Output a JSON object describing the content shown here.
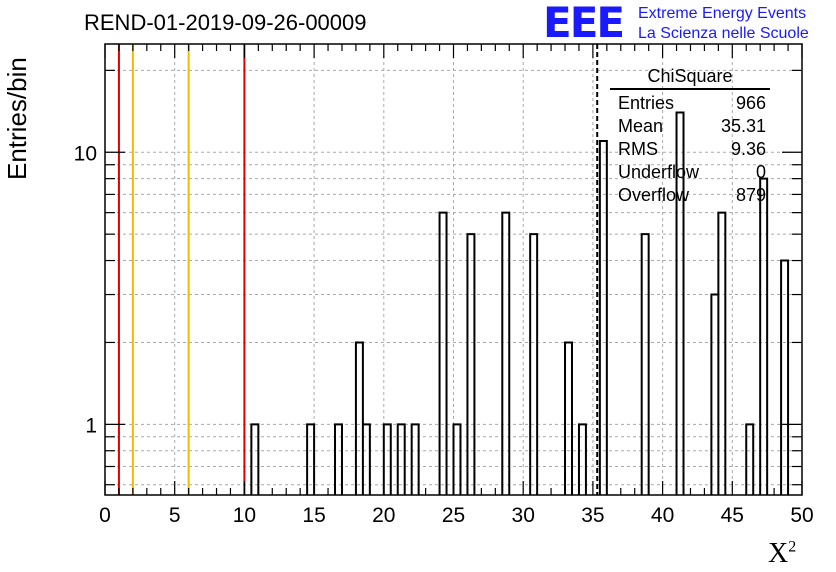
{
  "title": "REND-01-2019-09-26-00009",
  "logo": {
    "text": "EEE",
    "line1": "Extreme Energy Events",
    "line2": "La Scienza nelle Scuole",
    "color": "#1a1aff"
  },
  "stats": {
    "name": "ChiSquare",
    "entries_label": "Entries",
    "entries": "966",
    "mean_label": "Mean",
    "mean": "35.31",
    "rms_label": "RMS",
    "rms": "9.36",
    "underflow_label": "Underflow",
    "underflow": "0",
    "overflow_label": "Overflow",
    "overflow": "879"
  },
  "chart_data": {
    "type": "bar",
    "xlabel": "X",
    "xlabel_sup": "2",
    "ylabel": "Entries/bin",
    "xlim": [
      0,
      50
    ],
    "ylim": [
      0.55,
      25
    ],
    "yscale": "log",
    "bin_width": 0.5,
    "grid": true,
    "x_ticks": [
      "0",
      "5",
      "10",
      "15",
      "20",
      "25",
      "30",
      "35",
      "40",
      "45",
      "50"
    ],
    "y_ticks": [
      "1",
      "10"
    ],
    "bins": [
      {
        "x": 10.5,
        "y": 1
      },
      {
        "x": 14.5,
        "y": 1
      },
      {
        "x": 16.5,
        "y": 1
      },
      {
        "x": 18.0,
        "y": 2
      },
      {
        "x": 18.5,
        "y": 1
      },
      {
        "x": 20.0,
        "y": 1
      },
      {
        "x": 21.0,
        "y": 1
      },
      {
        "x": 22.0,
        "y": 1
      },
      {
        "x": 24.0,
        "y": 6
      },
      {
        "x": 25.0,
        "y": 1
      },
      {
        "x": 26.0,
        "y": 5
      },
      {
        "x": 28.5,
        "y": 6
      },
      {
        "x": 30.5,
        "y": 5
      },
      {
        "x": 33.0,
        "y": 2
      },
      {
        "x": 34.0,
        "y": 1
      },
      {
        "x": 35.5,
        "y": 11
      },
      {
        "x": 38.5,
        "y": 5
      },
      {
        "x": 41.0,
        "y": 14
      },
      {
        "x": 43.5,
        "y": 3
      },
      {
        "x": 44.0,
        "y": 6
      },
      {
        "x": 46.0,
        "y": 1
      },
      {
        "x": 47.0,
        "y": 8
      },
      {
        "x": 48.5,
        "y": 4
      }
    ],
    "vlines": [
      {
        "x": 1,
        "color": "#dd0000"
      },
      {
        "x": 2,
        "color": "#eebb00"
      },
      {
        "x": 6,
        "color": "#eebb00"
      },
      {
        "x": 10,
        "color": "#dd0000"
      },
      {
        "x": 35.31,
        "color": "#000000",
        "dashed": true
      }
    ]
  }
}
